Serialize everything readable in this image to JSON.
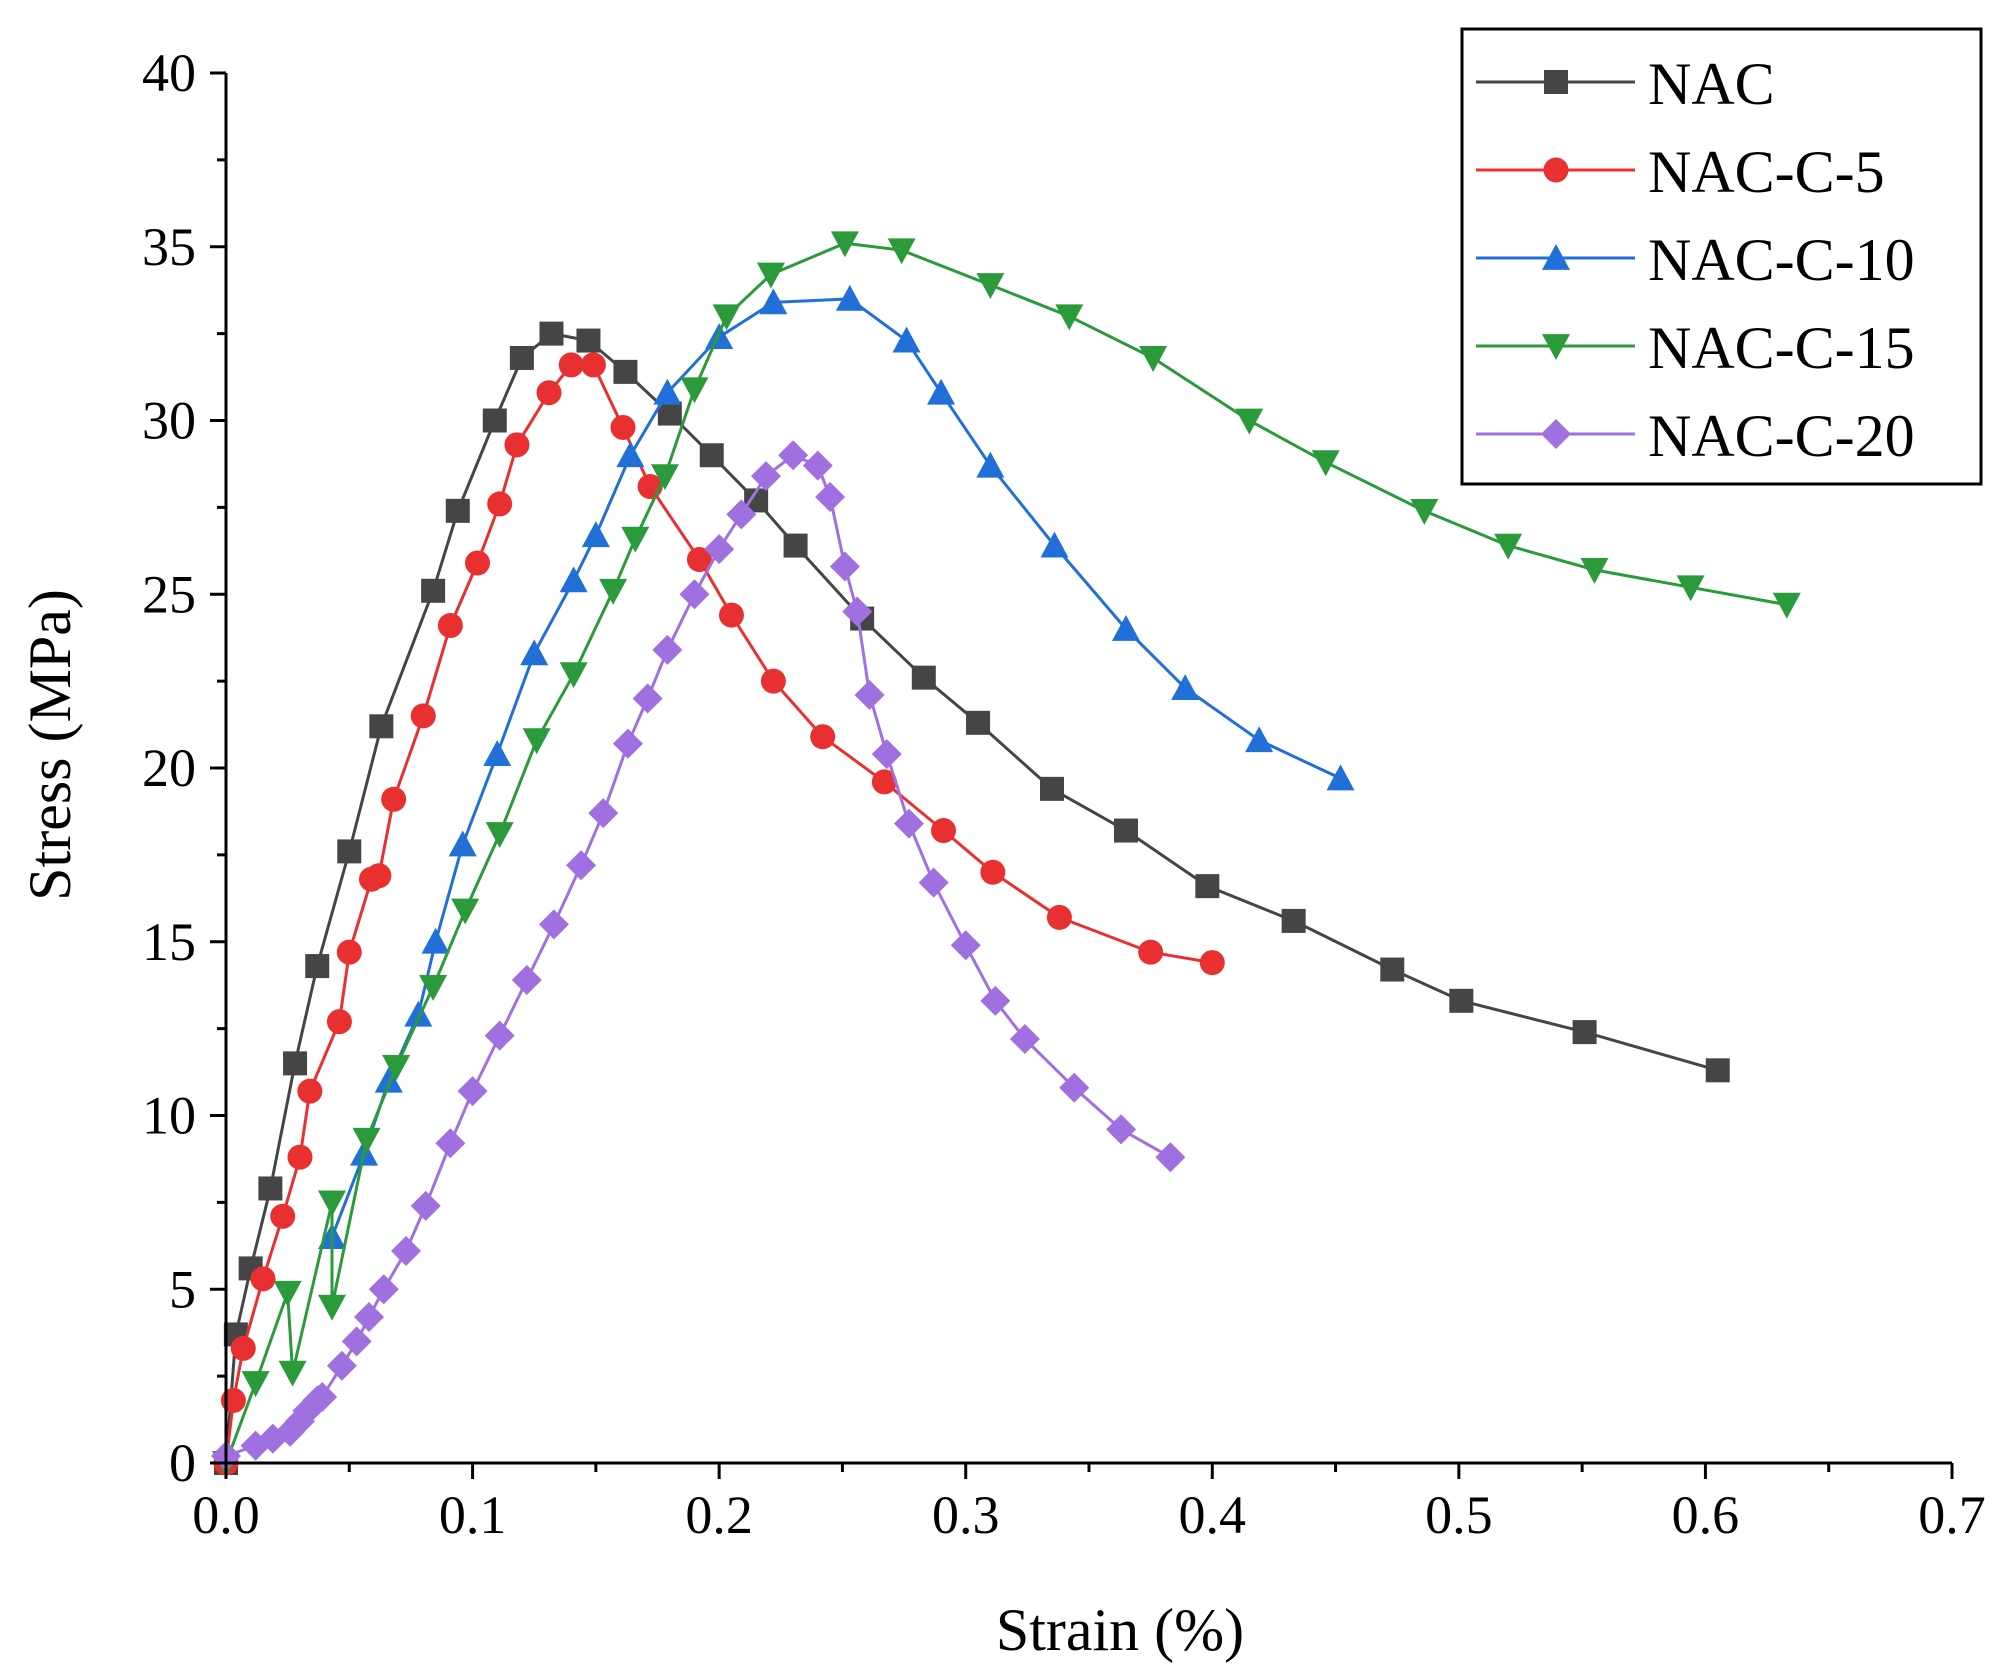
{
  "chart_data": {
    "type": "line",
    "title": "",
    "xlabel": "Strain (%)",
    "ylabel": "Stress (MPa)",
    "xlim": [
      0.0,
      0.7
    ],
    "ylim": [
      0,
      40
    ],
    "xticks": [
      0.0,
      0.1,
      0.2,
      0.3,
      0.4,
      0.5,
      0.6,
      0.7
    ],
    "xtick_labels": [
      "0.0",
      "0.1",
      "0.2",
      "0.3",
      "0.4",
      "0.5",
      "0.6",
      "0.7"
    ],
    "yticks": [
      0,
      5,
      10,
      15,
      20,
      25,
      30,
      35,
      40
    ],
    "ytick_labels": [
      "0",
      "5",
      "10",
      "15",
      "20",
      "25",
      "30",
      "35",
      "40"
    ],
    "grid": false,
    "legend_position": "top-right",
    "series": [
      {
        "name": "NAC",
        "color": "#454545",
        "marker": "square",
        "x": [
          0.0,
          0.004,
          0.01,
          0.018,
          0.028,
          0.037,
          0.05,
          0.063,
          0.084,
          0.094,
          0.109,
          0.12,
          0.132,
          0.147,
          0.162,
          0.18,
          0.197,
          0.215,
          0.231,
          0.258,
          0.283,
          0.305,
          0.335,
          0.365,
          0.398,
          0.433,
          0.473,
          0.501,
          0.551,
          0.605
        ],
        "y": [
          0.0,
          3.7,
          5.6,
          7.9,
          11.5,
          14.3,
          17.6,
          21.2,
          25.1,
          27.4,
          30.0,
          31.8,
          32.5,
          32.3,
          31.4,
          30.2,
          29.0,
          27.7,
          26.4,
          24.3,
          22.6,
          21.3,
          19.4,
          18.2,
          16.6,
          15.6,
          14.2,
          13.3,
          12.4,
          11.3
        ]
      },
      {
        "name": "NAC-C-5",
        "color": "#e83030",
        "marker": "circle",
        "x": [
          0.0,
          0.003,
          0.007,
          0.015,
          0.023,
          0.03,
          0.034,
          0.046,
          0.05,
          0.059,
          0.062,
          0.068,
          0.08,
          0.091,
          0.102,
          0.111,
          0.118,
          0.131,
          0.14,
          0.149,
          0.161,
          0.172,
          0.192,
          0.205,
          0.222,
          0.242,
          0.267,
          0.291,
          0.311,
          0.338,
          0.375,
          0.4
        ],
        "y": [
          0.0,
          1.8,
          3.3,
          5.3,
          7.1,
          8.8,
          10.7,
          12.7,
          14.7,
          16.8,
          16.9,
          19.1,
          21.5,
          24.1,
          25.9,
          27.6,
          29.3,
          30.8,
          31.6,
          31.6,
          29.8,
          28.1,
          26.0,
          24.4,
          22.5,
          20.9,
          19.6,
          18.2,
          17.0,
          15.7,
          14.7,
          14.4
        ]
      },
      {
        "name": "NAC-C-10",
        "color": "#2070d8",
        "marker": "triangle-up",
        "x": [
          0.043,
          0.056,
          0.066,
          0.078,
          0.085,
          0.096,
          0.11,
          0.125,
          0.141,
          0.15,
          0.164,
          0.179,
          0.2,
          0.222,
          0.253,
          0.276,
          0.29,
          0.31,
          0.336,
          0.365,
          0.389,
          0.419,
          0.452
        ],
        "y": [
          6.5,
          8.9,
          11.0,
          12.9,
          15.0,
          17.8,
          20.4,
          23.3,
          25.4,
          26.7,
          29.0,
          30.8,
          32.4,
          33.4,
          33.5,
          32.3,
          30.8,
          28.7,
          26.4,
          24.0,
          22.3,
          20.8,
          19.7
        ]
      },
      {
        "name": "NAC-C-15",
        "color": "#2a9a3a",
        "marker": "triangle-down",
        "x": [
          0.0,
          0.012,
          0.025,
          0.027,
          0.043,
          0.043,
          0.057,
          0.069,
          0.084,
          0.097,
          0.111,
          0.126,
          0.141,
          0.157,
          0.166,
          0.178,
          0.19,
          0.203,
          0.221,
          0.251,
          0.274,
          0.31,
          0.342,
          0.376,
          0.415,
          0.446,
          0.486,
          0.52,
          0.555,
          0.594,
          0.633
        ],
        "y": [
          0.0,
          2.3,
          4.9,
          2.6,
          7.5,
          4.5,
          9.3,
          11.4,
          13.7,
          15.9,
          18.1,
          20.8,
          22.7,
          25.1,
          26.6,
          28.4,
          30.9,
          33.0,
          34.2,
          35.1,
          34.9,
          33.9,
          33.0,
          31.8,
          30.0,
          28.8,
          27.4,
          26.4,
          25.7,
          25.2,
          24.7
        ]
      },
      {
        "name": "NAC-C-20",
        "color": "#a070e0",
        "marker": "diamond",
        "x": [
          0.0,
          0.012,
          0.019,
          0.026,
          0.03,
          0.033,
          0.037,
          0.039,
          0.047,
          0.053,
          0.058,
          0.064,
          0.073,
          0.081,
          0.091,
          0.1,
          0.111,
          0.122,
          0.133,
          0.144,
          0.153,
          0.163,
          0.171,
          0.179,
          0.19,
          0.2,
          0.209,
          0.219,
          0.23,
          0.24,
          0.245,
          0.251,
          0.256,
          0.261,
          0.268,
          0.277,
          0.287,
          0.3,
          0.312,
          0.324,
          0.344,
          0.363,
          0.383
        ],
        "y": [
          0.2,
          0.5,
          0.7,
          0.9,
          1.2,
          1.5,
          1.8,
          1.9,
          2.8,
          3.5,
          4.2,
          5.0,
          6.1,
          7.4,
          9.2,
          10.7,
          12.3,
          13.9,
          15.5,
          17.2,
          18.7,
          20.7,
          22.0,
          23.4,
          25.0,
          26.3,
          27.3,
          28.4,
          29.0,
          28.7,
          27.8,
          25.8,
          24.5,
          22.1,
          20.4,
          18.4,
          16.7,
          14.9,
          13.3,
          12.2,
          10.8,
          9.6,
          8.8
        ]
      }
    ]
  }
}
